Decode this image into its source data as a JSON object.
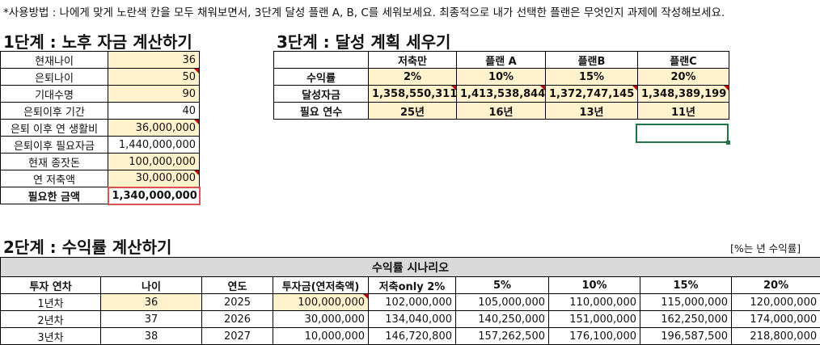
{
  "instructions": "*사용방법 : 나에게 맞게 노란색 칸을 모두 채워보면서, 3단계 달성 플랜 A, B, C를 세워보세요. 최종적으로 내가 선택한 플랜은 무엇인지 과제에 작성해보세요.",
  "step1": {
    "title": "1단계 : 노후 자금 계산하기",
    "rows": [
      {
        "label": "현재나이",
        "value": "36"
      },
      {
        "label": "은퇴나이",
        "value": "50"
      },
      {
        "label": "기대수명",
        "value": "90"
      },
      {
        "label": "은퇴이후 기간",
        "value": "40"
      },
      {
        "label": "은퇴 이후 연 생활비",
        "value": "36,000,000"
      },
      {
        "label": "은퇴이후 필요자금",
        "value": "1,440,000,000"
      },
      {
        "label": "현재 종잣돈",
        "value": "100,000,000"
      },
      {
        "label": "연 저축액",
        "value": "30,000,000"
      },
      {
        "label": "필요한 금액",
        "value": "1,340,000,000"
      }
    ]
  },
  "step3": {
    "title": "3단계 : 달성 계획 세우기",
    "headers": [
      "저축만",
      "플랜 A",
      "플랜B",
      "플랜C"
    ],
    "rows": [
      {
        "label": "수익률",
        "values": [
          "2%",
          "10%",
          "15%",
          "20%"
        ]
      },
      {
        "label": "달성자금",
        "values": [
          "1,358,550,311",
          "1,413,538,844",
          "1,372,747,145",
          "1,348,389,199"
        ]
      },
      {
        "label": "필요 연수",
        "values": [
          "25년",
          "16년",
          "13년",
          "11년"
        ]
      }
    ]
  },
  "step2": {
    "title": "2단계 : 수익률 계산하기",
    "note": "[%는 년 수익률]",
    "scenario_title": "수익률 시나리오",
    "headers": [
      "투자 연차",
      "나이",
      "연도",
      "투자금(연저축액)",
      "저축only 2%",
      "5%",
      "10%",
      "15%",
      "20%"
    ],
    "rows": [
      [
        "1년차",
        "36",
        "2025",
        "100,000,000",
        "102,000,000",
        "105,000,000",
        "110,000,000",
        "115,000,000",
        "120,000,000"
      ],
      [
        "2년차",
        "37",
        "2026",
        "30,000,000",
        "134,040,000",
        "140,250,000",
        "151,000,000",
        "162,250,000",
        "174,000,000"
      ],
      [
        "3년차",
        "38",
        "2027",
        "10,000,000",
        "146,720,800",
        "157,262,500",
        "176,100,000",
        "196,587,500",
        "218,800,000"
      ]
    ]
  }
}
